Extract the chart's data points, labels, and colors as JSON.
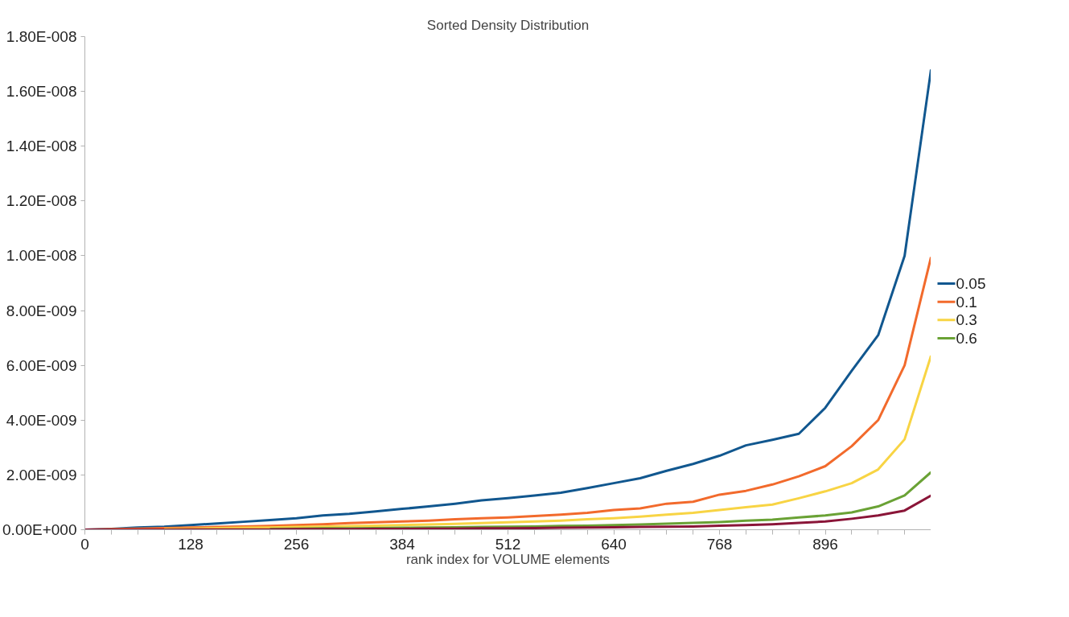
{
  "chart_data": {
    "type": "line",
    "title": "Sorted Density Distribution",
    "xlabel": "rank index for VOLUME elements",
    "x": [
      0,
      32,
      64,
      96,
      128,
      160,
      192,
      224,
      256,
      288,
      320,
      352,
      384,
      416,
      448,
      480,
      512,
      544,
      576,
      608,
      640,
      672,
      704,
      736,
      768,
      800,
      832,
      864,
      896,
      928,
      960,
      992,
      1024
    ],
    "series": [
      {
        "name": "0.05",
        "color": "#11578f",
        "values": [
          0,
          3e-11,
          8e-11,
          1.1e-10,
          1.7e-10,
          2.3e-10,
          2.9e-10,
          3.5e-10,
          4.2e-10,
          5.2e-10,
          5.8e-10,
          6.7e-10,
          7.6e-10,
          8.5e-10,
          9.5e-10,
          1.07e-09,
          1.15e-09,
          1.25e-09,
          1.35e-09,
          1.52e-09,
          1.7e-09,
          1.88e-09,
          2.15e-09,
          2.4e-09,
          2.7e-09,
          3.08e-09,
          3.28e-09,
          3.5e-09,
          4.45e-09,
          5.8e-09,
          7.1e-09,
          1e-08,
          1.68e-08
        ]
      },
      {
        "name": "0.1",
        "color": "#f26a2c",
        "values": [
          0,
          2e-11,
          4e-11,
          6e-11,
          8e-11,
          1e-10,
          1.2e-10,
          1.4e-10,
          1.7e-10,
          2e-10,
          2.4e-10,
          2.7e-10,
          3e-10,
          3.3e-10,
          3.8e-10,
          4.2e-10,
          4.5e-10,
          5e-10,
          5.5e-10,
          6.2e-10,
          7.2e-10,
          7.8e-10,
          9.5e-10,
          1.02e-09,
          1.28e-09,
          1.42e-09,
          1.65e-09,
          1.95e-09,
          2.32e-09,
          3.05e-09,
          4e-09,
          6e-09,
          9.95e-09
        ]
      },
      {
        "name": "0.3",
        "color": "#f8d444",
        "values": [
          null,
          null,
          null,
          3e-11,
          4e-11,
          6e-11,
          7e-11,
          8e-11,
          1e-10,
          1.1e-10,
          1.3e-10,
          1.5e-10,
          1.7e-10,
          1.9e-10,
          2.1e-10,
          2.4e-10,
          2.7e-10,
          3e-10,
          3.3e-10,
          3.8e-10,
          4.2e-10,
          4.8e-10,
          5.5e-10,
          6.2e-10,
          7.2e-10,
          8.2e-10,
          9.2e-10,
          1.15e-09,
          1.4e-09,
          1.7e-09,
          2.2e-09,
          3.3e-09,
          6.35e-09
        ]
      },
      {
        "name": "0.6",
        "color": "#6aa235",
        "values": [
          null,
          null,
          null,
          null,
          null,
          null,
          null,
          3e-11,
          4e-11,
          5e-11,
          5e-11,
          6e-11,
          7e-11,
          8e-11,
          9e-11,
          1e-10,
          1.1e-10,
          1.2e-10,
          1.4e-10,
          1.5e-10,
          1.7e-10,
          1.9e-10,
          2.2e-10,
          2.5e-10,
          2.8e-10,
          3.3e-10,
          3.7e-10,
          4.5e-10,
          5.2e-10,
          6.3e-10,
          8.5e-10,
          1.25e-09,
          2.1e-09
        ]
      },
      {
        "color": "#8a1538",
        "values": [
          0,
          0,
          0,
          0,
          1e-11,
          1e-11,
          1e-11,
          1e-11,
          2e-11,
          2e-11,
          2e-11,
          3e-11,
          3e-11,
          4e-11,
          4e-11,
          5e-11,
          5e-11,
          6e-11,
          7e-11,
          8e-11,
          9e-11,
          1e-10,
          1.1e-10,
          1.2e-10,
          1.5e-10,
          1.7e-10,
          2e-10,
          2.5e-10,
          3e-10,
          4e-10,
          5.2e-10,
          7e-10,
          1.25e-09
        ]
      }
    ],
    "xlim": [
      0,
      1024
    ],
    "xticks": [
      0,
      {
        "value": 32,
        "label": null
      },
      {
        "value": 64,
        "label": null
      },
      {
        "value": 96,
        "label": null
      },
      128,
      {
        "value": 160,
        "label": null
      },
      {
        "value": 192,
        "label": null
      },
      {
        "value": 224,
        "label": null
      },
      256,
      {
        "value": 288,
        "label": null
      },
      {
        "value": 320,
        "label": null
      },
      {
        "value": 352,
        "label": null
      },
      384,
      {
        "value": 416,
        "label": null
      },
      {
        "value": 448,
        "label": null
      },
      {
        "value": 480,
        "label": null
      },
      512,
      {
        "value": 544,
        "label": null
      },
      {
        "value": 576,
        "label": null
      },
      {
        "value": 608,
        "label": null
      },
      640,
      {
        "value": 672,
        "label": null
      },
      {
        "value": 704,
        "label": null
      },
      {
        "value": 736,
        "label": null
      },
      768,
      {
        "value": 800,
        "label": null
      },
      {
        "value": 832,
        "label": null
      },
      {
        "value": 864,
        "label": null
      },
      896,
      {
        "value": 928,
        "label": null
      },
      {
        "value": 960,
        "label": null
      },
      {
        "value": 992,
        "label": null
      },
      {
        "value": 1024,
        "label": null
      }
    ],
    "ylim": [
      0,
      1.8e-08
    ],
    "yticks": [
      {
        "value": 0,
        "label": "0.00E+000"
      },
      {
        "value": 2e-09,
        "label": "2.00E-009"
      },
      {
        "value": 4e-09,
        "label": "4.00E-009"
      },
      {
        "value": 6e-09,
        "label": "6.00E-009"
      },
      {
        "value": 8e-09,
        "label": "8.00E-009"
      },
      {
        "value": 1e-08,
        "label": "1.00E-008"
      },
      {
        "value": 1.2e-08,
        "label": "1.20E-008"
      },
      {
        "value": 1.4e-08,
        "label": "1.40E-008"
      },
      {
        "value": 1.6e-08,
        "label": "1.60E-008"
      },
      {
        "value": 1.8e-08,
        "label": "1.80E-008"
      }
    ],
    "grid": false,
    "legend": "right",
    "marker": "none",
    "line_style": "solid"
  }
}
